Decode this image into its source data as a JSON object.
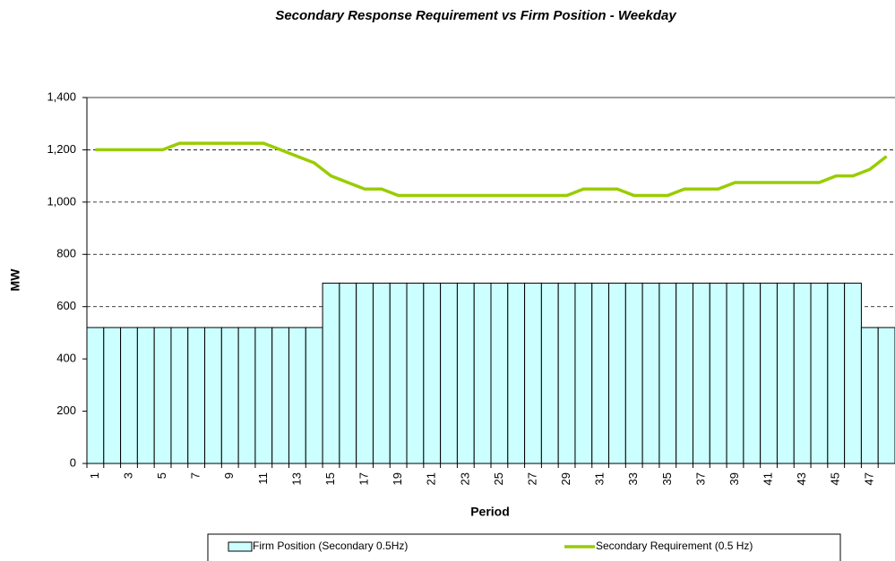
{
  "chart_data": {
    "type": "bar-line",
    "title": "Secondary Response Requirement vs Firm Position - Weekday",
    "x_label": "Period",
    "y_label": "MW",
    "categories": [
      "1",
      null,
      "3",
      null,
      "5",
      null,
      "7",
      null,
      "9",
      null,
      "11",
      null,
      "13",
      null,
      "15",
      null,
      "17",
      null,
      "19",
      null,
      "21",
      null,
      "23",
      null,
      "25",
      null,
      "27",
      null,
      "29",
      null,
      "31",
      null,
      "33",
      null,
      "35",
      null,
      "37",
      null,
      "39",
      null,
      "41",
      null,
      "43",
      null,
      "45",
      null,
      "47",
      null
    ],
    "series": [
      {
        "name": "Firm Position (Secondary 0.5Hz)",
        "type": "bar",
        "color": "#ccffff",
        "values": [
          520,
          520,
          520,
          520,
          520,
          520,
          520,
          520,
          520,
          520,
          520,
          520,
          520,
          520,
          690,
          690,
          690,
          690,
          690,
          690,
          690,
          690,
          690,
          690,
          690,
          690,
          690,
          690,
          690,
          690,
          690,
          690,
          690,
          690,
          690,
          690,
          690,
          690,
          690,
          690,
          690,
          690,
          690,
          690,
          690,
          690,
          520,
          520
        ]
      },
      {
        "name": "Secondary Requirement (0.5 Hz)",
        "type": "line",
        "color": "#99cc00",
        "values": [
          1200,
          1200,
          1200,
          1200,
          1200,
          1225,
          1225,
          1225,
          1225,
          1225,
          1225,
          1200,
          1175,
          1150,
          1100,
          1075,
          1050,
          1050,
          1025,
          1025,
          1025,
          1025,
          1025,
          1025,
          1025,
          1025,
          1025,
          1025,
          1025,
          1050,
          1050,
          1050,
          1025,
          1025,
          1025,
          1050,
          1050,
          1050,
          1075,
          1075,
          1075,
          1075,
          1075,
          1075,
          1100,
          1100,
          1125,
          1175
        ]
      }
    ],
    "ylim": [
      0,
      1400
    ],
    "yticks": [
      0,
      {
        "value": 200,
        "label": "200"
      },
      {
        "value": 400,
        "label": "400"
      },
      {
        "value": 600,
        "label": "600"
      },
      {
        "value": 800,
        "label": "800"
      },
      {
        "value": 1000,
        "label": "1,000"
      },
      {
        "value": 1200,
        "label": "1,200"
      },
      {
        "value": 1400,
        "label": "1,400"
      }
    ],
    "grid": true,
    "legend": "bottom"
  }
}
